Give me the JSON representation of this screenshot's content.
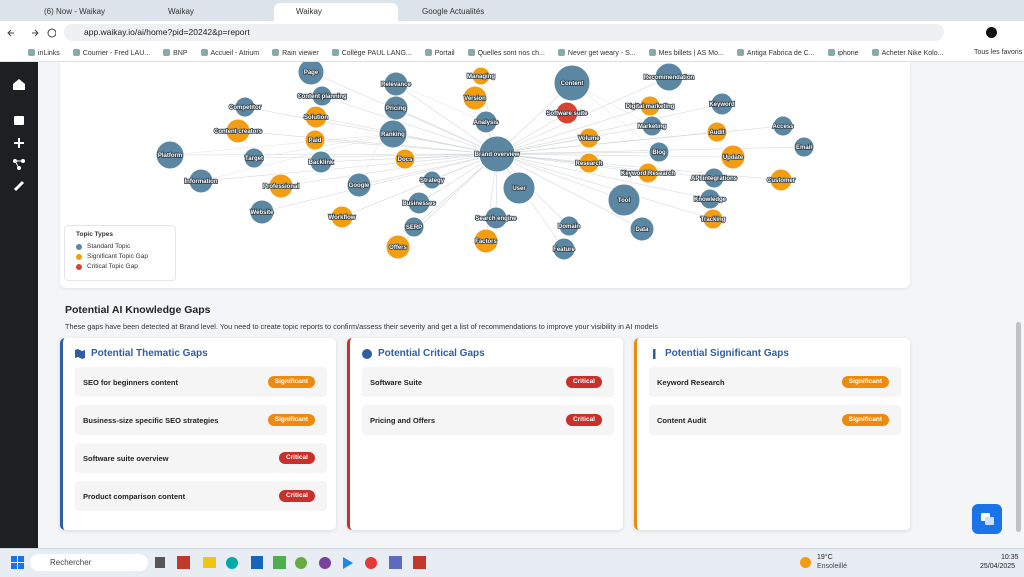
{
  "browser": {
    "tabs": [
      "(6) Now - Waikay",
      "Waikay",
      "Waikay",
      "Google Actualités"
    ],
    "url": "app.waikay.io/ai/home?pid=20242&p=report",
    "bookmarks": [
      "inLinks",
      "Courrier - Fred LAU...",
      "BNP",
      "Accueil - Atrium",
      "Rain viewer",
      "Collège PAUL LANG...",
      "Portail",
      "Quelles sont nos ch...",
      "Never get weary - S...",
      "Mes billets | AS Mo...",
      "Antiga Fabrica de C...",
      "iphone",
      "Acheter Nike Kolo..."
    ],
    "all_bookmarks": "Tous les favoris"
  },
  "graph": {
    "colors": {
      "standard": "#5b87a3",
      "significant": "#f29d12",
      "critical": "#d64531"
    },
    "nodes": [
      {
        "label": "Page",
        "type": "standard"
      },
      {
        "label": "Relevance",
        "type": "standard"
      },
      {
        "label": "Content planning",
        "type": "standard"
      },
      {
        "label": "Pricing",
        "type": "standard"
      },
      {
        "label": "Content",
        "type": "standard"
      },
      {
        "label": "Recommendation",
        "type": "standard"
      },
      {
        "label": "Keyword",
        "type": "standard"
      },
      {
        "label": "Competitor",
        "type": "standard"
      },
      {
        "label": "Analysis",
        "type": "standard"
      },
      {
        "label": "Marketing",
        "type": "standard"
      },
      {
        "label": "Access",
        "type": "standard"
      },
      {
        "label": "Ranking",
        "type": "standard"
      },
      {
        "label": "Platform",
        "type": "standard"
      },
      {
        "label": "Target",
        "type": "standard"
      },
      {
        "label": "Backlink",
        "type": "standard"
      },
      {
        "label": "Brand overview",
        "type": "standard"
      },
      {
        "label": "Blog",
        "type": "standard"
      },
      {
        "label": "Email",
        "type": "standard"
      },
      {
        "label": "Strategy",
        "type": "standard"
      },
      {
        "label": "Information",
        "type": "standard"
      },
      {
        "label": "Google",
        "type": "standard"
      },
      {
        "label": "User",
        "type": "standard"
      },
      {
        "label": "API integrations",
        "type": "standard"
      },
      {
        "label": "Tool",
        "type": "standard"
      },
      {
        "label": "Knowledge",
        "type": "standard"
      },
      {
        "label": "Businesses",
        "type": "standard"
      },
      {
        "label": "Website",
        "type": "standard"
      },
      {
        "label": "SERP",
        "type": "standard"
      },
      {
        "label": "Search engine",
        "type": "standard"
      },
      {
        "label": "Domain",
        "type": "standard"
      },
      {
        "label": "Data",
        "type": "standard"
      },
      {
        "label": "Feature",
        "type": "standard"
      },
      {
        "label": "Managing",
        "type": "significant"
      },
      {
        "label": "Version",
        "type": "significant"
      },
      {
        "label": "Solution",
        "type": "significant"
      },
      {
        "label": "Digital marketing",
        "type": "significant"
      },
      {
        "label": "Content creators",
        "type": "significant"
      },
      {
        "label": "Paid",
        "type": "significant"
      },
      {
        "label": "Docs",
        "type": "significant"
      },
      {
        "label": "Volume",
        "type": "significant"
      },
      {
        "label": "Audit",
        "type": "significant"
      },
      {
        "label": "Research",
        "type": "significant"
      },
      {
        "label": "Keyword Research",
        "type": "significant"
      },
      {
        "label": "Update",
        "type": "significant"
      },
      {
        "label": "Customer",
        "type": "significant"
      },
      {
        "label": "Professional",
        "type": "significant"
      },
      {
        "label": "Workflow",
        "type": "significant"
      },
      {
        "label": "Tracking",
        "type": "significant"
      },
      {
        "label": "Factors",
        "type": "significant"
      },
      {
        "label": "Offers",
        "type": "significant"
      },
      {
        "label": "Software suite",
        "type": "critical"
      }
    ],
    "legend": {
      "title": "Topic Types",
      "items": [
        {
          "label": "Standard Topic",
          "type": "standard"
        },
        {
          "label": "Significant Topic Gap",
          "type": "significant"
        },
        {
          "label": "Critical Topic Gap",
          "type": "critical"
        }
      ]
    }
  },
  "gaps": {
    "title": "Potential AI Knowledge Gaps",
    "description": "These gaps have been detected at Brand level. You need to create topic reports to confirm/assess their severity and get a list of recommendations to improve your visibility in AI models",
    "badge_colors": {
      "Significant": "#ee8a0d",
      "Critical": "#c9302c"
    },
    "cards": [
      {
        "title": "Potential Thematic Gaps",
        "accent": "#2f5f9e",
        "items": [
          {
            "label": "SEO for beginners content",
            "level": "Significant"
          },
          {
            "label": "Business-size specific SEO strategies",
            "level": "Significant"
          },
          {
            "label": "Software suite overview",
            "level": "Critical"
          },
          {
            "label": "Product comparison content",
            "level": "Critical"
          }
        ]
      },
      {
        "title": "Potential Critical Gaps",
        "accent": "#c9302c",
        "items": [
          {
            "label": "Software Suite",
            "level": "Critical"
          },
          {
            "label": "Pricing and Offers",
            "level": "Critical"
          }
        ]
      },
      {
        "title": "Potential Significant Gaps",
        "accent": "#ee8a0d",
        "items": [
          {
            "label": "Keyword Research",
            "level": "Significant"
          },
          {
            "label": "Content Audit",
            "level": "Significant"
          }
        ]
      }
    ]
  },
  "taskbar": {
    "search": "Rechercher",
    "temperature": "19°C",
    "weather": "Ensoleillé",
    "time": "10:35",
    "date": "25/04/2025"
  }
}
